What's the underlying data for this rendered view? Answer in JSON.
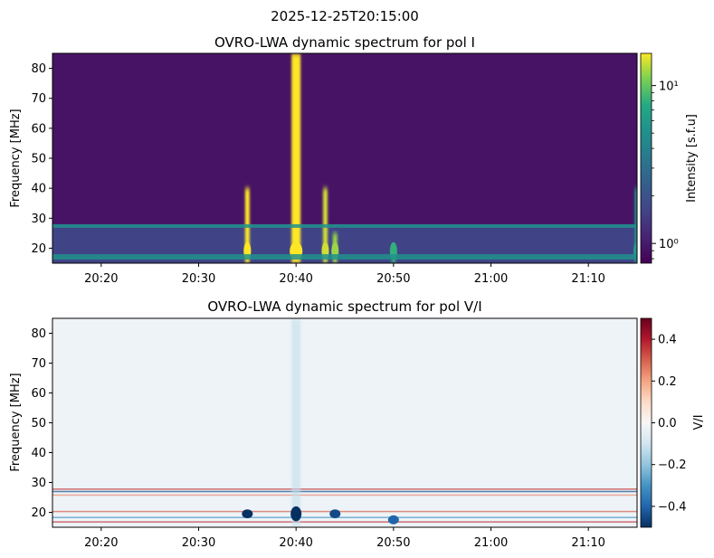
{
  "figure": {
    "suptitle": "2025-12-25T20:15:00"
  },
  "chart_data": [
    {
      "type": "heatmap",
      "title": "OVRO-LWA dynamic spectrum for pol I",
      "ylabel": "Frequency [MHz]",
      "xlabel": "",
      "x_range": [
        "20:15",
        "21:15"
      ],
      "xticks": [
        "20:20",
        "20:30",
        "20:40",
        "20:50",
        "21:00",
        "21:10"
      ],
      "ylim": [
        15,
        85
      ],
      "yticks": [
        20,
        30,
        40,
        50,
        60,
        70,
        80
      ],
      "colormap": "viridis",
      "colorbar": {
        "label": "Intensity [s.f.u]",
        "scale": "log",
        "range": [
          0.75,
          16
        ],
        "major_ticks": [
          {
            "value": 1,
            "label": "10⁰"
          },
          {
            "value": 10,
            "label": "10¹"
          }
        ]
      },
      "features": [
        {
          "kind": "burst",
          "time": "20:35",
          "freq_max_mhz": 40,
          "intensity": 16
        },
        {
          "kind": "burst",
          "time": "20:40",
          "freq_max_mhz": 85,
          "intensity": 16
        },
        {
          "kind": "burst",
          "time": "20:43",
          "freq_max_mhz": 40,
          "intensity": 14
        },
        {
          "kind": "burst",
          "time": "20:44",
          "freq_max_mhz": 25,
          "intensity": 12
        },
        {
          "kind": "burst",
          "time": "20:50",
          "freq_max_mhz": 20,
          "intensity": 8
        },
        {
          "kind": "burst",
          "time": "21:15",
          "freq_max_mhz": 40,
          "intensity": 6
        },
        {
          "kind": "rfi_band",
          "freq_range_mhz": [
            26,
            28
          ]
        },
        {
          "kind": "rfi_band",
          "freq_range_mhz": [
            15,
            18
          ]
        }
      ]
    },
    {
      "type": "heatmap",
      "title": "OVRO-LWA dynamic spectrum for pol V/I",
      "ylabel": "Frequency [MHz]",
      "xlabel": "",
      "x_range": [
        "20:15",
        "21:15"
      ],
      "xticks": [
        "20:20",
        "20:30",
        "20:40",
        "20:50",
        "21:00",
        "21:10"
      ],
      "ylim": [
        15,
        85
      ],
      "yticks": [
        20,
        30,
        40,
        50,
        60,
        70,
        80
      ],
      "colormap": "RdBu_r",
      "colorbar": {
        "label": "V/I",
        "scale": "linear",
        "range": [
          -0.5,
          0.5
        ],
        "ticks": [
          "−0.4",
          "−0.2",
          "0.0",
          "0.2",
          "0.4"
        ],
        "tick_values": [
          -0.4,
          -0.2,
          0.0,
          0.2,
          0.4
        ]
      },
      "features": [
        {
          "kind": "polarized_burst",
          "time": "20:35",
          "freq_range_mhz": [
            18,
            21
          ],
          "value": -0.5
        },
        {
          "kind": "polarized_burst",
          "time": "20:40",
          "freq_range_mhz": [
            17,
            22
          ],
          "value": -0.5
        },
        {
          "kind": "polarized_burst",
          "time": "20:44",
          "freq_range_mhz": [
            18,
            21
          ],
          "value": -0.45
        },
        {
          "kind": "polarized_burst",
          "time": "20:50",
          "freq_range_mhz": [
            16,
            19
          ],
          "value": -0.4
        }
      ]
    }
  ]
}
